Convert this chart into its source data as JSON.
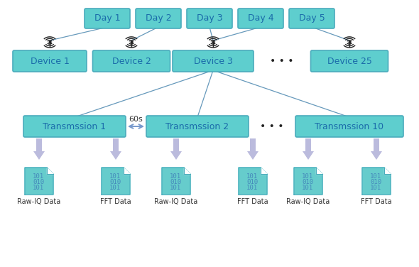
{
  "bg_color": "#ffffff",
  "box_fill": "#5ECECE",
  "box_edge": "#4AACBC",
  "box_text": "#1A6BAA",
  "arrow_fill": "#BBBBDD",
  "doc_fill": "#66CCCC",
  "doc_edge": "#4AACBC",
  "doc_text": "#4488BB",
  "line_color": "#6699BB",
  "dbl_arrow_color": "#7799CC",
  "dots_color": "#222222",
  "label_color": "#333333",
  "day_labels": [
    "Day 1",
    "Day 2",
    "Day 3",
    "Day 4",
    "Day 5"
  ],
  "device_labels": [
    "Device 1",
    "Device 2",
    "Device 3",
    "Device 25"
  ],
  "trans_labels": [
    "Transmssion 1",
    "Transmssion 2",
    "Transmssion 10"
  ],
  "file_labels": [
    "Raw-IQ Data",
    "FFT Data",
    "Raw-IQ Data",
    "FFT Data",
    "Raw-IQ Data",
    "FFT Data"
  ],
  "sixty_s": "60s"
}
